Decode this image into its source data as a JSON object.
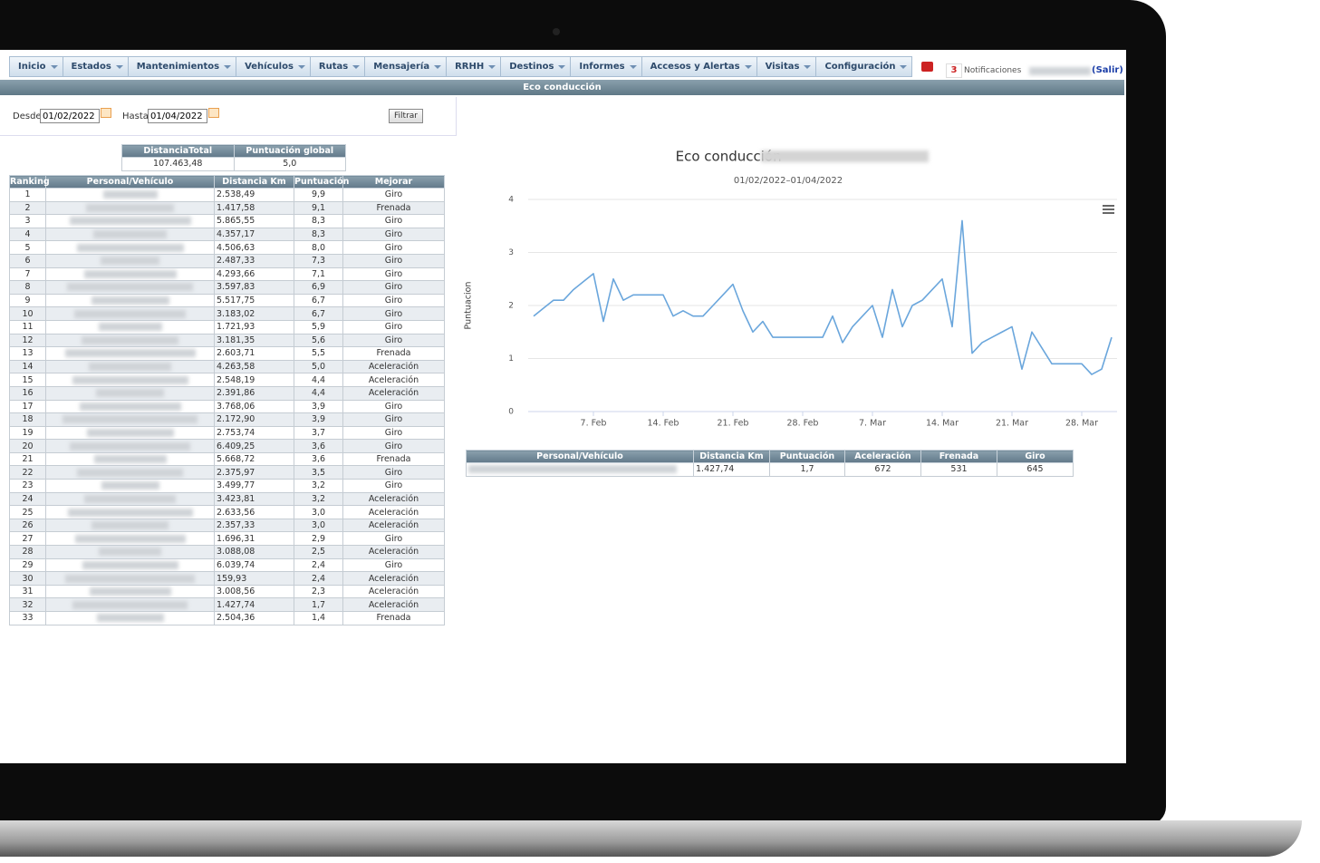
{
  "nav": {
    "items": [
      "Inicio",
      "Estados",
      "Mantenimientos",
      "Vehículos",
      "Rutas",
      "Mensajería",
      "RRHH",
      "Destinos",
      "Informes",
      "Accesos y Alertas",
      "Visitas",
      "Configuración"
    ]
  },
  "notifications": {
    "count": "3",
    "label": "Notificaciones"
  },
  "user": {
    "logout": "(Salir)"
  },
  "header": {
    "title": "Eco conducción"
  },
  "filter": {
    "from_label": "Desde",
    "from": "01/02/2022",
    "to_label": "Hasta",
    "to": "01/04/2022",
    "button": "Filtrar"
  },
  "summary": {
    "headers": [
      "DistanciaTotal",
      "Puntuación global"
    ],
    "values": [
      "107.463,48",
      "5,0"
    ]
  },
  "ranking": {
    "headers": [
      "Ranking",
      "Personal/Vehículo",
      "Distancia Km",
      "Puntuación",
      "Mejorar"
    ],
    "rows": [
      [
        "1",
        "2.538,49",
        "9,9",
        "Giro"
      ],
      [
        "2",
        "1.417,58",
        "9,1",
        "Frenada"
      ],
      [
        "3",
        "5.865,55",
        "8,3",
        "Giro"
      ],
      [
        "4",
        "4.357,17",
        "8,3",
        "Giro"
      ],
      [
        "5",
        "4.506,63",
        "8,0",
        "Giro"
      ],
      [
        "6",
        "2.487,33",
        "7,3",
        "Giro"
      ],
      [
        "7",
        "4.293,66",
        "7,1",
        "Giro"
      ],
      [
        "8",
        "3.597,83",
        "6,9",
        "Giro"
      ],
      [
        "9",
        "5.517,75",
        "6,7",
        "Giro"
      ],
      [
        "10",
        "3.183,02",
        "6,7",
        "Giro"
      ],
      [
        "11",
        "1.721,93",
        "5,9",
        "Giro"
      ],
      [
        "12",
        "3.181,35",
        "5,6",
        "Giro"
      ],
      [
        "13",
        "2.603,71",
        "5,5",
        "Frenada"
      ],
      [
        "14",
        "4.263,58",
        "5,0",
        "Aceleración"
      ],
      [
        "15",
        "2.548,19",
        "4,4",
        "Aceleración"
      ],
      [
        "16",
        "2.391,86",
        "4,4",
        "Aceleración"
      ],
      [
        "17",
        "3.768,06",
        "3,9",
        "Giro"
      ],
      [
        "18",
        "2.172,90",
        "3,9",
        "Giro"
      ],
      [
        "19",
        "2.753,74",
        "3,7",
        "Giro"
      ],
      [
        "20",
        "6.409,25",
        "3,6",
        "Giro"
      ],
      [
        "21",
        "5.668,72",
        "3,6",
        "Frenada"
      ],
      [
        "22",
        "2.375,97",
        "3,5",
        "Giro"
      ],
      [
        "23",
        "3.499,77",
        "3,2",
        "Giro"
      ],
      [
        "24",
        "3.423,81",
        "3,2",
        "Aceleración"
      ],
      [
        "25",
        "2.633,56",
        "3,0",
        "Aceleración"
      ],
      [
        "26",
        "2.357,33",
        "3,0",
        "Aceleración"
      ],
      [
        "27",
        "1.696,31",
        "2,9",
        "Giro"
      ],
      [
        "28",
        "3.088,08",
        "2,5",
        "Aceleración"
      ],
      [
        "29",
        "6.039,74",
        "2,4",
        "Giro"
      ],
      [
        "30",
        "159,93",
        "2,4",
        "Aceleración"
      ],
      [
        "31",
        "3.008,56",
        "2,3",
        "Aceleración"
      ],
      [
        "32",
        "1.427,74",
        "1,7",
        "Aceleración"
      ],
      [
        "33",
        "2.504,36",
        "1,4",
        "Frenada"
      ]
    ]
  },
  "chart_data": {
    "type": "line",
    "title": "Eco conducción-",
    "subtitle": "01/02/2022–01/04/2022",
    "y_label": "Puntuacion",
    "x": [
      "02-01",
      "02-02",
      "02-03",
      "02-04",
      "02-05",
      "02-06",
      "02-07",
      "02-08",
      "02-09",
      "02-10",
      "02-11",
      "02-12",
      "02-13",
      "02-14",
      "02-15",
      "02-16",
      "02-17",
      "02-18",
      "02-19",
      "02-20",
      "02-21",
      "02-22",
      "02-23",
      "02-24",
      "02-25",
      "02-26",
      "02-27",
      "02-28",
      "03-01",
      "03-02",
      "03-03",
      "03-04",
      "03-05",
      "03-06",
      "03-07",
      "03-08",
      "03-09",
      "03-10",
      "03-11",
      "03-12",
      "03-13",
      "03-14",
      "03-15",
      "03-16",
      "03-17",
      "03-18",
      "03-19",
      "03-20",
      "03-21",
      "03-22",
      "03-23",
      "03-24",
      "03-25",
      "03-26",
      "03-27",
      "03-28",
      "03-29",
      "03-30",
      "03-31"
    ],
    "values": [
      1.8,
      1.95,
      2.1,
      2.1,
      2.3,
      2.45,
      2.6,
      1.7,
      2.5,
      2.1,
      2.2,
      2.2,
      2.2,
      2.2,
      1.8,
      1.9,
      1.8,
      1.8,
      2.0,
      2.2,
      2.4,
      1.9,
      1.5,
      1.7,
      1.4,
      1.4,
      1.4,
      1.4,
      1.4,
      1.4,
      1.8,
      1.3,
      1.6,
      1.8,
      2.0,
      1.4,
      2.3,
      1.6,
      2.0,
      2.1,
      2.3,
      2.5,
      1.6,
      3.6,
      1.1,
      1.3,
      1.4,
      1.5,
      1.6,
      0.8,
      1.5,
      1.2,
      0.9,
      0.9,
      0.9,
      0.9,
      0.7,
      0.8,
      1.4
    ],
    "color": "#6aa6dc",
    "xlim": [
      "02-01",
      "03-31"
    ],
    "xticks": [
      {
        "value": "02-07",
        "label": "7. Feb"
      },
      {
        "value": "02-14",
        "label": "14. Feb"
      },
      {
        "value": "02-21",
        "label": "21. Feb"
      },
      {
        "value": "02-28",
        "label": "28. Feb"
      },
      {
        "value": "03-07",
        "label": "7. Mar"
      },
      {
        "value": "03-14",
        "label": "14. Mar"
      },
      {
        "value": "03-21",
        "label": "21. Mar"
      },
      {
        "value": "03-28",
        "label": "28. Mar"
      }
    ],
    "ylim": [
      0,
      4
    ],
    "yticks": [
      0,
      1,
      2,
      3,
      4
    ],
    "grid": true
  },
  "detail": {
    "headers": [
      "Personal/Vehículo",
      "Distancia Km",
      "Puntuación",
      "Aceleración",
      "Frenada",
      "Giro"
    ],
    "row": [
      "1.427,74",
      "1,7",
      "672",
      "531",
      "645"
    ]
  }
}
